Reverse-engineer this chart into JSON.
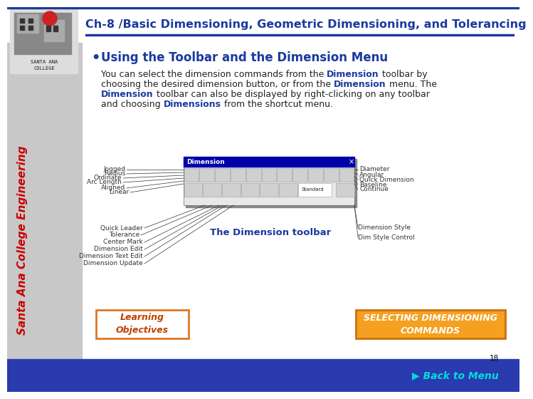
{
  "title": "Ch-8 /Basic Dimensioning, Geometric Dimensioning, and Tolerancing",
  "title_color": "#1a3a9f",
  "bg_color": "#ffffff",
  "bullet_heading": "Using the Toolbar and the Dimension Menu",
  "bullet_heading_color": "#1a3a9f",
  "body_color": "#222222",
  "bold_color": "#1a3a9f",
  "caption": "The Dimension toolbar",
  "caption_color": "#1a3a9f",
  "btn1_text": "Learning\nObjectives",
  "btn1_bg": "#ffffff",
  "btn1_border": "#e07820",
  "btn1_text_color": "#c04000",
  "btn2_text": "SELECTING DIMENSIONING\nCOMMANDS",
  "btn2_bg": "#f5a020",
  "btn2_border": "#c87010",
  "btn2_text_color": "#ffffff",
  "footer_bg": "#2a3aaf",
  "footer_text": "Back to Menu",
  "footer_text_color": "#00dddd",
  "page_num": "18",
  "sidebar_color": "#cc0000",
  "sidebar_bg": "#c8c8c8",
  "title_line_color": "#1a3a9f"
}
